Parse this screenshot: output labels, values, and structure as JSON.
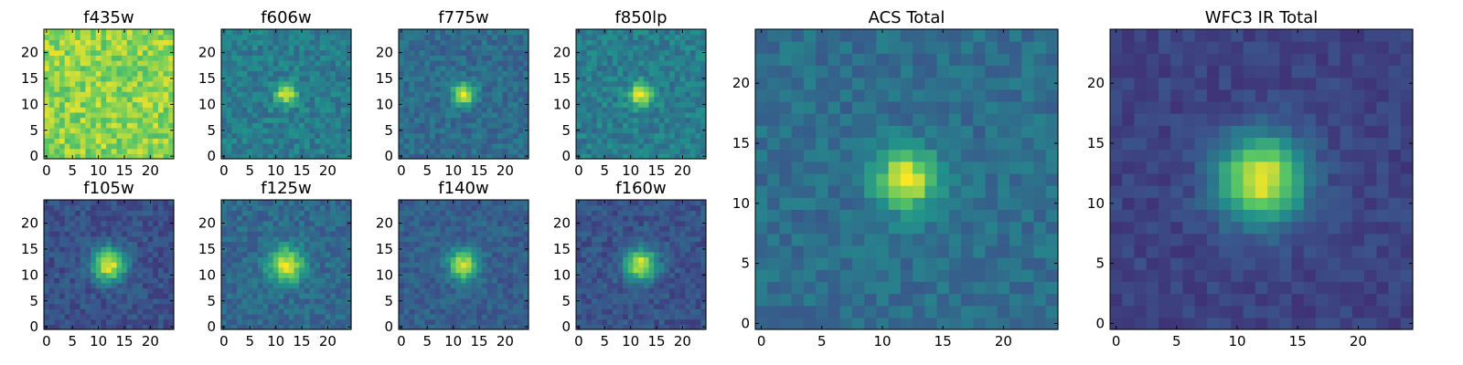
{
  "figure": {
    "layout": "Eight small panels arranged in two rows of four (top: f435w, f606w, f775w, f850lp; bottom: f105w, f125w, f140w, f160w) followed by two larger panels (ACS Total, WFC3 IR Total) to the right",
    "colormap": [
      "#440154",
      "#3b528b",
      "#21918c",
      "#5ec962",
      "#fde725"
    ]
  },
  "chart_data": [
    {
      "type": "heatmap",
      "title": "f435w",
      "grid_size": 25,
      "xlim": [
        0,
        24
      ],
      "ylim": [
        0,
        24
      ],
      "xticks": [
        0,
        5,
        10,
        15,
        20
      ],
      "yticks": [
        0,
        5,
        10,
        15,
        20
      ],
      "source_center": null,
      "background": 0.82,
      "peak": 0.0,
      "sigma": 2.0,
      "noise": 0.14,
      "seed": 11
    },
    {
      "type": "heatmap",
      "title": "f606w",
      "grid_size": 25,
      "xlim": [
        0,
        24
      ],
      "ylim": [
        0,
        24
      ],
      "xticks": [
        0,
        5,
        10,
        15,
        20
      ],
      "yticks": [
        0,
        5,
        10,
        15,
        20
      ],
      "source_center": [
        12,
        12
      ],
      "background": 0.42,
      "peak": 0.55,
      "sigma": 1.4,
      "noise": 0.1,
      "seed": 23
    },
    {
      "type": "heatmap",
      "title": "f775w",
      "grid_size": 25,
      "xlim": [
        0,
        24
      ],
      "ylim": [
        0,
        24
      ],
      "xticks": [
        0,
        5,
        10,
        15,
        20
      ],
      "yticks": [
        0,
        5,
        10,
        15,
        20
      ],
      "source_center": [
        12,
        12
      ],
      "background": 0.35,
      "peak": 0.62,
      "sigma": 1.5,
      "noise": 0.09,
      "seed": 37
    },
    {
      "type": "heatmap",
      "title": "f850lp",
      "grid_size": 25,
      "xlim": [
        0,
        24
      ],
      "ylim": [
        0,
        24
      ],
      "xticks": [
        0,
        5,
        10,
        15,
        20
      ],
      "yticks": [
        0,
        5,
        10,
        15,
        20
      ],
      "source_center": [
        12,
        12
      ],
      "background": 0.42,
      "peak": 0.55,
      "sigma": 1.6,
      "noise": 0.1,
      "seed": 41
    },
    {
      "type": "heatmap",
      "title": "f105w",
      "grid_size": 25,
      "xlim": [
        0,
        24
      ],
      "ylim": [
        0,
        24
      ],
      "xticks": [
        0,
        5,
        10,
        15,
        20
      ],
      "yticks": [
        0,
        5,
        10,
        15,
        20
      ],
      "source_center": [
        12,
        12
      ],
      "background": 0.25,
      "peak": 0.72,
      "sigma": 2.2,
      "noise": 0.08,
      "seed": 53
    },
    {
      "type": "heatmap",
      "title": "f125w",
      "grid_size": 25,
      "xlim": [
        0,
        24
      ],
      "ylim": [
        0,
        24
      ],
      "xticks": [
        0,
        5,
        10,
        15,
        20
      ],
      "yticks": [
        0,
        5,
        10,
        15,
        20
      ],
      "source_center": [
        12,
        12
      ],
      "background": 0.34,
      "peak": 0.6,
      "sigma": 2.4,
      "noise": 0.09,
      "seed": 67
    },
    {
      "type": "heatmap",
      "title": "f140w",
      "grid_size": 25,
      "xlim": [
        0,
        24
      ],
      "ylim": [
        0,
        24
      ],
      "xticks": [
        0,
        5,
        10,
        15,
        20
      ],
      "yticks": [
        0,
        5,
        10,
        15,
        20
      ],
      "source_center": [
        12,
        12
      ],
      "background": 0.3,
      "peak": 0.62,
      "sigma": 2.0,
      "noise": 0.08,
      "seed": 71
    },
    {
      "type": "heatmap",
      "title": "f160w",
      "grid_size": 25,
      "xlim": [
        0,
        24
      ],
      "ylim": [
        0,
        24
      ],
      "xticks": [
        0,
        5,
        10,
        15,
        20
      ],
      "yticks": [
        0,
        5,
        10,
        15,
        20
      ],
      "source_center": [
        12,
        12
      ],
      "background": 0.26,
      "peak": 0.7,
      "sigma": 2.1,
      "noise": 0.08,
      "seed": 83
    },
    {
      "type": "heatmap",
      "title": "ACS Total",
      "grid_size": 25,
      "xlim": [
        0,
        24
      ],
      "ylim": [
        0,
        24
      ],
      "xticks": [
        0,
        5,
        10,
        15,
        20
      ],
      "yticks": [
        0,
        5,
        10,
        15,
        20
      ],
      "source_center": [
        12,
        12
      ],
      "background": 0.36,
      "peak": 0.64,
      "sigma": 1.7,
      "noise": 0.08,
      "seed": 97
    },
    {
      "type": "heatmap",
      "title": "WFC3 IR Total",
      "grid_size": 25,
      "xlim": [
        0,
        24
      ],
      "ylim": [
        0,
        24
      ],
      "xticks": [
        0,
        5,
        10,
        15,
        20
      ],
      "yticks": [
        0,
        5,
        10,
        15,
        20
      ],
      "source_center": [
        12,
        12
      ],
      "background": 0.2,
      "peak": 0.78,
      "sigma": 2.5,
      "noise": 0.05,
      "seed": 109
    }
  ]
}
